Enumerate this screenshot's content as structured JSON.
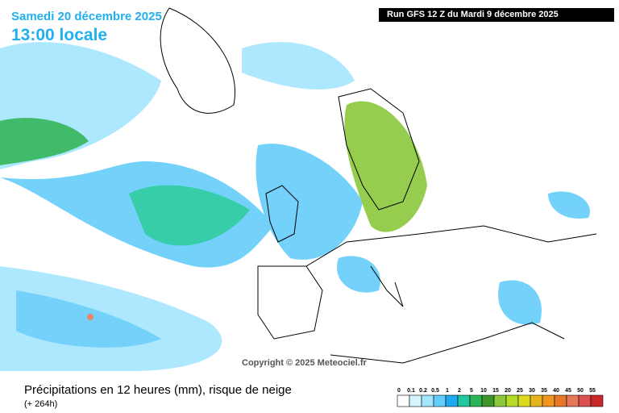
{
  "header": {
    "date": "Samedi 20 décembre 2025",
    "time": "13:00 locale",
    "run": "Run GFS 12 Z du Mardi 9 décembre 2025"
  },
  "copyright": "Copyright © 2025 Meteociel.fr",
  "footer": {
    "title": "Précipitations en 12 heures (mm), risque de neige",
    "subtitle": "(+ 264h)"
  },
  "legend": {
    "items": [
      {
        "label": "0",
        "color": "#ffffff"
      },
      {
        "label": "0.1",
        "color": "#d2f5ff"
      },
      {
        "label": "0.2",
        "color": "#a5e6ff"
      },
      {
        "label": "0.5",
        "color": "#64cdfa"
      },
      {
        "label": "1",
        "color": "#1eaaf0"
      },
      {
        "label": "2",
        "color": "#22c8a0"
      },
      {
        "label": "5",
        "color": "#2db45a"
      },
      {
        "label": "10",
        "color": "#3c9628"
      },
      {
        "label": "15",
        "color": "#8cc83c"
      },
      {
        "label": "20",
        "color": "#b4dc28"
      },
      {
        "label": "25",
        "color": "#dcdc1e"
      },
      {
        "label": "30",
        "color": "#e6b41e"
      },
      {
        "label": "35",
        "color": "#f0961e"
      },
      {
        "label": "40",
        "color": "#e67828"
      },
      {
        "label": "45",
        "color": "#e6785a"
      },
      {
        "label": "50",
        "color": "#dc5050"
      },
      {
        "label": "55",
        "color": "#c82828"
      }
    ]
  }
}
